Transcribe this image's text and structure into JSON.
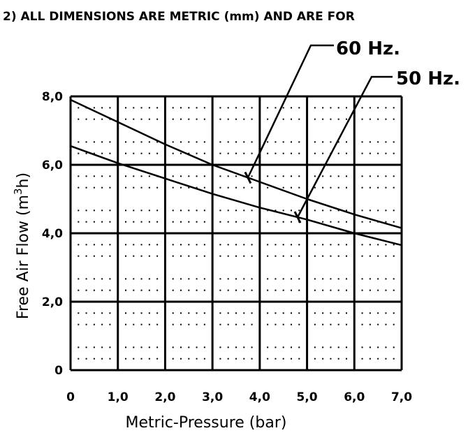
{
  "header_note": "2) ALL DIMENSIONS ARE METRIC (mm) AND ARE FOR",
  "chart_data": {
    "type": "line",
    "xlabel": "Metric-Pressure (bar)",
    "ylabel_main": "Free Air Flow (m",
    "ylabel_sup": "3",
    "ylabel_end": "h)",
    "xlim": [
      0,
      7
    ],
    "ylim": [
      0,
      8
    ],
    "x_ticks": [
      "0",
      "1,0",
      "2,0",
      "3,0",
      "4,0",
      "5,0",
      "6,0",
      "7,0"
    ],
    "y_ticks": [
      "0",
      "2,0",
      "4,0",
      "6,0",
      "8,0"
    ],
    "grid": true,
    "x": [
      0,
      1,
      2,
      3,
      4,
      5,
      6,
      7
    ],
    "series": [
      {
        "name": "60 Hz.",
        "values": [
          7.9,
          7.25,
          6.6,
          6.0,
          5.5,
          5.0,
          4.55,
          4.15
        ]
      },
      {
        "name": "50 Hz.",
        "values": [
          6.55,
          6.05,
          5.6,
          5.15,
          4.75,
          4.4,
          4.0,
          3.65
        ]
      }
    ]
  }
}
